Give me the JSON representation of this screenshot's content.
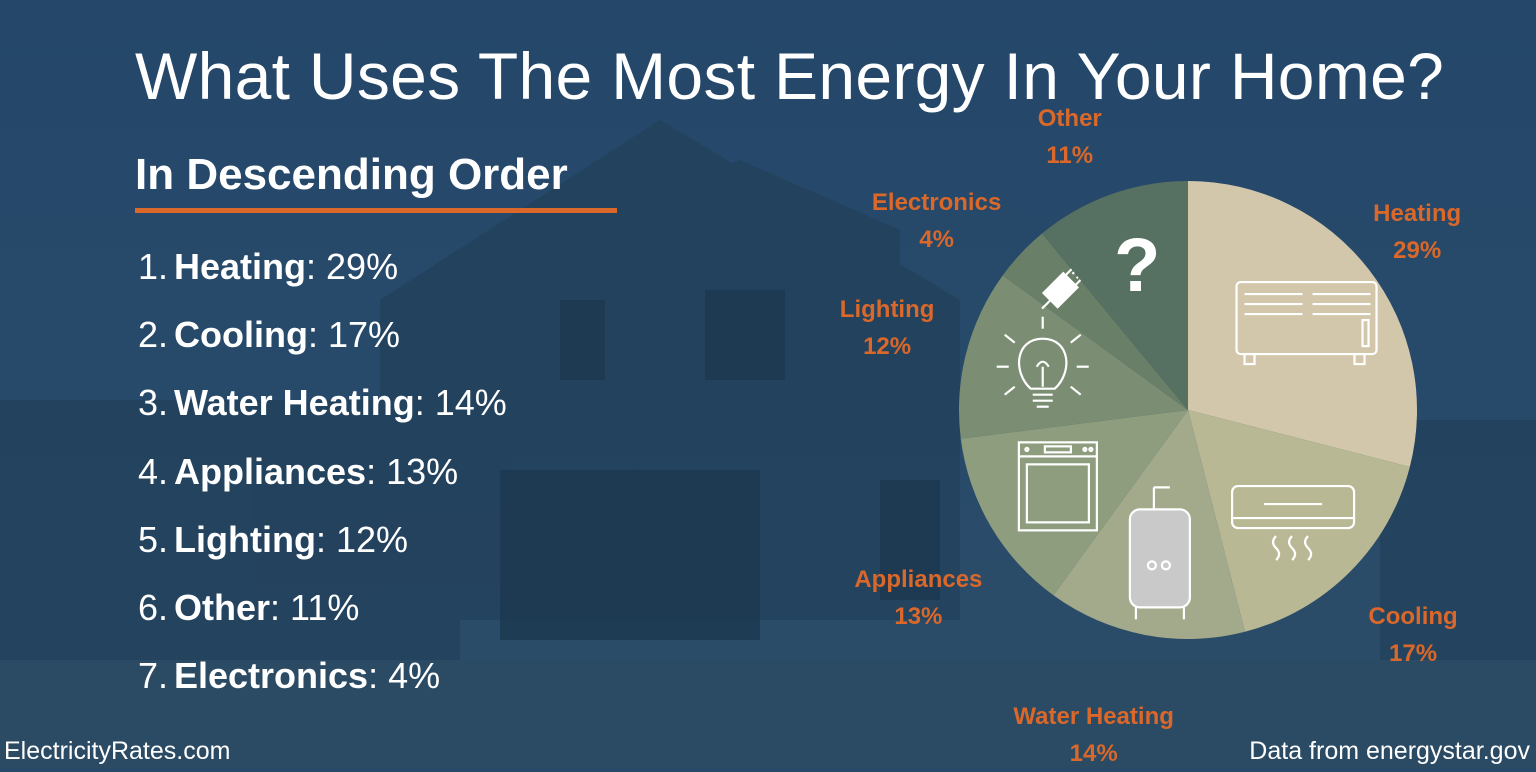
{
  "title": "What Uses The Most Energy In Your Home?",
  "subtitle": "In Descending Order",
  "ranking": [
    {
      "num": "1.",
      "name": "Heating",
      "value": ": 29%"
    },
    {
      "num": "2.",
      "name": "Cooling",
      "value": ": 17%"
    },
    {
      "num": "3.",
      "name": "Water Heating",
      "value": ": 14%"
    },
    {
      "num": "4.",
      "name": "Appliances",
      "value": ": 13%"
    },
    {
      "num": "5.",
      "name": "Lighting",
      "value": ": 12%"
    },
    {
      "num": "6.",
      "name": "Other",
      "value": ": 11%"
    },
    {
      "num": "7.",
      "name": "Electronics",
      "value": ": 4%"
    }
  ],
  "footer": {
    "site": "ElectricityRates.com",
    "source": "Data from energystar.gov"
  },
  "colors": {
    "background": "#284a68",
    "accent": "#d9682a",
    "text": "#ffffff"
  },
  "chart_data": {
    "type": "pie",
    "start_angle_deg": 0,
    "direction": "clockwise",
    "slices": [
      {
        "label": "Heating",
        "value": 29,
        "pct_label": "29%",
        "color": "#d2c7ab",
        "icon": "radiator-icon"
      },
      {
        "label": "Cooling",
        "value": 17,
        "pct_label": "17%",
        "color": "#b9b894",
        "icon": "air-conditioner-icon"
      },
      {
        "label": "Water Heating",
        "value": 14,
        "pct_label": "14%",
        "color": "#a3aa8c",
        "icon": "water-heater-icon"
      },
      {
        "label": "Appliances",
        "value": 13,
        "pct_label": "13%",
        "color": "#8f9d7f",
        "icon": "dishwasher-icon"
      },
      {
        "label": "Lighting",
        "value": 12,
        "pct_label": "12%",
        "color": "#7b8e73",
        "icon": "lightbulb-icon"
      },
      {
        "label": "Electronics",
        "value": 4,
        "pct_label": "4%",
        "color": "#6a7f68",
        "icon": "plug-icon"
      },
      {
        "label": "Other",
        "value": 11,
        "pct_label": "11%",
        "color": "#567062",
        "icon": "question-icon"
      }
    ]
  }
}
